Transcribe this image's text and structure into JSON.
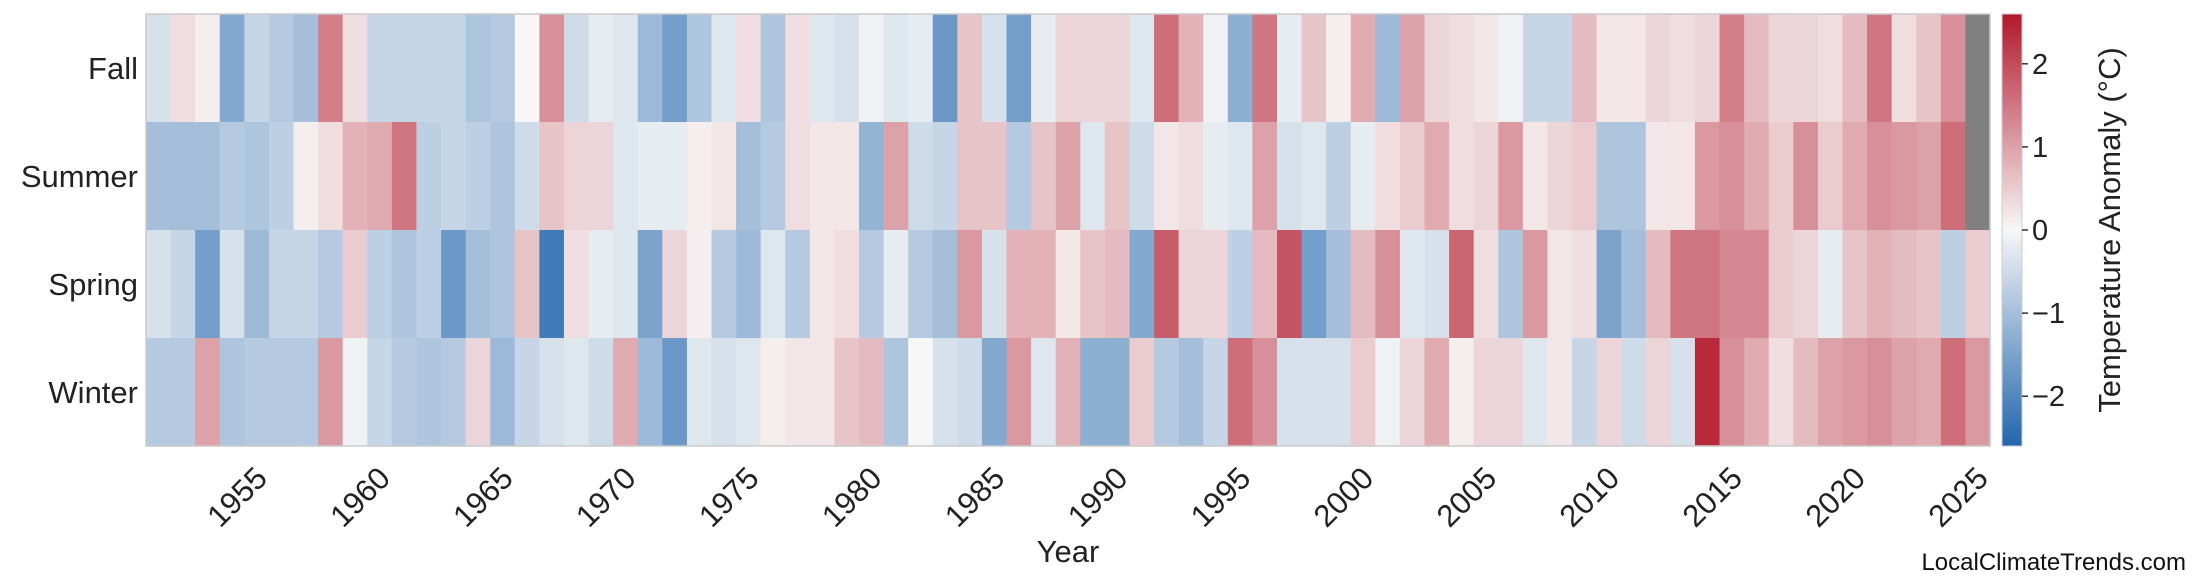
{
  "chart_data": {
    "type": "heatmap",
    "title": "",
    "xlabel": "Year",
    "colorbar_label": "Temperature Anomaly (°C)",
    "colorbar_ticks": [
      -2,
      -1,
      0,
      1,
      2
    ],
    "colorbar_tick_labels": [
      "−2",
      "−1",
      "0",
      "1",
      "2"
    ],
    "value_range": [
      -2.6,
      2.6
    ],
    "colormap": {
      "low": "#2166ac",
      "mid": "#f7f7f7",
      "high": "#b2182b",
      "missing": "#808080"
    },
    "x_start": 1951,
    "x_end": 2025,
    "x_ticks": [
      1955,
      1960,
      1965,
      1970,
      1975,
      1980,
      1985,
      1990,
      1995,
      2000,
      2005,
      2010,
      2015,
      2020,
      2025
    ],
    "rows": [
      "Fall",
      "Summer",
      "Spring",
      "Winter"
    ],
    "values": {
      "Fall": [
        -0.4,
        0.3,
        0.1,
        -1.4,
        -0.6,
        -0.8,
        -1.0,
        1.4,
        0.3,
        -0.6,
        -0.6,
        -0.6,
        -0.6,
        -0.9,
        -0.8,
        0.0,
        1.2,
        -0.5,
        -0.2,
        -0.3,
        -1.1,
        -1.6,
        -0.9,
        -0.3,
        0.3,
        -0.9,
        0.3,
        -0.3,
        -0.4,
        -0.1,
        -0.3,
        -0.2,
        -1.7,
        0.6,
        -0.4,
        -1.6,
        -0.2,
        0.4,
        0.4,
        0.4,
        -0.3,
        1.6,
        0.8,
        -0.1,
        -1.3,
        1.5,
        -0.2,
        0.6,
        0.1,
        0.9,
        -1.1,
        1.0,
        0.4,
        0.3,
        0.2,
        -0.1,
        -0.6,
        -0.6,
        0.7,
        0.2,
        0.2,
        0.4,
        0.3,
        0.4,
        1.4,
        0.7,
        0.4,
        0.4,
        0.3,
        0.7,
        1.5,
        0.3,
        0.6,
        1.2,
        null
      ],
      "Summer": [
        -1.0,
        -1.0,
        -1.0,
        -0.8,
        -0.9,
        -0.7,
        0.1,
        0.3,
        0.8,
        0.9,
        1.5,
        -0.7,
        -0.6,
        -0.7,
        -0.9,
        -0.5,
        0.6,
        0.4,
        0.4,
        -0.3,
        -0.2,
        -0.2,
        0.1,
        0.2,
        -1.0,
        -0.8,
        0.3,
        0.2,
        0.2,
        -1.2,
        1.0,
        -0.5,
        -0.6,
        0.6,
        0.6,
        -0.8,
        0.6,
        1.0,
        -0.3,
        0.6,
        -0.5,
        0.2,
        0.3,
        -0.2,
        -0.3,
        1.0,
        -0.4,
        -0.3,
        -0.7,
        -0.2,
        0.3,
        0.5,
        0.9,
        0.3,
        0.4,
        1.1,
        0.2,
        0.4,
        0.5,
        -0.9,
        -0.9,
        0.2,
        0.2,
        1.1,
        1.2,
        0.9,
        0.5,
        1.2,
        0.5,
        0.9,
        1.2,
        1.1,
        1.0,
        1.6,
        null
      ],
      "Spring": [
        -0.4,
        -0.6,
        -1.6,
        -0.4,
        -1.1,
        -0.6,
        -0.6,
        -0.8,
        0.5,
        -0.7,
        -0.9,
        -0.7,
        -1.7,
        -1.0,
        -0.9,
        0.6,
        -2.2,
        0.3,
        -0.2,
        -0.3,
        -1.5,
        0.4,
        0.1,
        -0.8,
        -1.1,
        -0.3,
        -0.8,
        0.2,
        0.3,
        -0.8,
        -0.2,
        -0.8,
        -1.0,
        1.1,
        -0.4,
        0.8,
        0.8,
        0.2,
        0.6,
        0.7,
        -1.4,
        1.8,
        0.4,
        0.4,
        -0.7,
        0.7,
        1.9,
        -1.6,
        -1.0,
        0.7,
        1.2,
        -0.3,
        -0.4,
        1.7,
        0.3,
        -0.9,
        1.1,
        0.2,
        0.3,
        -1.5,
        -1.0,
        0.7,
        1.5,
        1.5,
        1.3,
        1.3,
        0.5,
        0.4,
        -0.2,
        0.6,
        0.8,
        0.7,
        0.6,
        -0.7,
        0.5
      ],
      "Winter": [
        -0.8,
        -0.8,
        1.0,
        -0.9,
        -0.8,
        -0.8,
        -0.8,
        1.1,
        -0.1,
        -0.6,
        -0.8,
        -0.9,
        -0.8,
        0.4,
        -1.1,
        -0.6,
        -0.4,
        -0.3,
        -0.5,
        0.9,
        -1.1,
        -1.7,
        -0.3,
        -0.4,
        -0.3,
        0.1,
        0.2,
        0.2,
        0.6,
        0.7,
        -0.9,
        0.0,
        -0.4,
        -0.5,
        -1.4,
        1.1,
        -0.3,
        0.8,
        -1.3,
        -1.3,
        0.5,
        -0.8,
        -1.0,
        -0.6,
        1.6,
        1.2,
        -0.4,
        -0.4,
        -0.4,
        0.5,
        -0.1,
        0.4,
        0.9,
        0.1,
        0.4,
        0.4,
        -0.3,
        0.2,
        -0.6,
        0.4,
        -0.5,
        0.4,
        -0.4,
        2.4,
        1.2,
        0.9,
        0.3,
        0.7,
        1.0,
        1.1,
        1.2,
        1.0,
        0.9,
        1.6,
        1.1
      ]
    }
  },
  "credit": "LocalClimateTrends.com"
}
